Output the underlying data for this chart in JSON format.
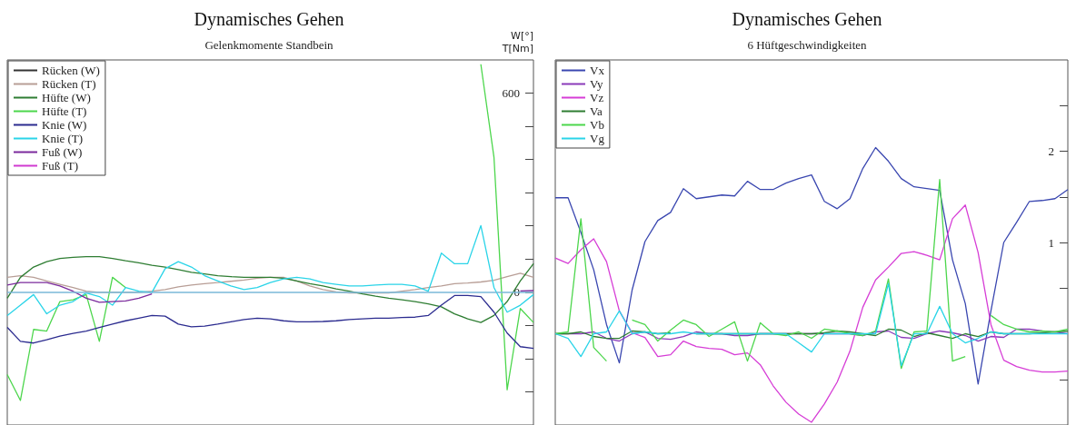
{
  "chart_data": [
    {
      "type": "line",
      "title": "Dynamisches Gehen",
      "subtitle": "Gelenkmomente Standbein",
      "ylabel": "W[°]\nT[Nm]",
      "legend": "top left",
      "grid": false,
      "marker": "none",
      "line_style": "solid",
      "tick_labels": "y",
      "categories": [
        null,
        null,
        null,
        null,
        null,
        null,
        null,
        null,
        null,
        null,
        null,
        null,
        null,
        null,
        null,
        null,
        null,
        null,
        null,
        null,
        null,
        null,
        null,
        null,
        null,
        null,
        null,
        null,
        null,
        null,
        null,
        null,
        null,
        null,
        null,
        null,
        null,
        null,
        null,
        null,
        null
      ],
      "ylim": [
        -400,
        700
      ],
      "yticks": [
        {
          "value": -300,
          "label": null
        },
        {
          "value": -200,
          "label": null
        },
        {
          "value": -100,
          "label": null
        },
        0,
        {
          "value": 100,
          "label": null
        },
        {
          "value": 200,
          "label": null
        },
        {
          "value": 300,
          "label": null
        },
        {
          "value": 400,
          "label": null
        },
        {
          "value": 500,
          "label": null
        },
        600
      ],
      "series": [
        {
          "name": "Rücken (W)",
          "color": "#333333",
          "values": [
            null,
            null,
            null,
            null,
            null,
            null,
            null,
            null,
            null,
            null,
            null,
            null,
            null,
            null,
            null,
            null,
            null,
            null,
            null,
            null,
            null,
            null,
            null,
            null,
            null,
            null,
            null,
            null,
            null,
            null,
            null,
            null,
            null,
            null,
            null,
            null,
            null,
            null,
            null,
            null,
            null
          ]
        },
        {
          "name": "Rücken (T)",
          "color": "#b89e96",
          "values": [
            45,
            50,
            45,
            34,
            24,
            14,
            3,
            0,
            0,
            0,
            0,
            3,
            8,
            16,
            22,
            26,
            29,
            33,
            37,
            42,
            45,
            45,
            34,
            19,
            8,
            1,
            -2,
            -2,
            -2,
            -2,
            3,
            8,
            14,
            19,
            26,
            28,
            31,
            36,
            47,
            57,
            45
          ]
        },
        {
          "name": "Hüfte (W)",
          "color": "#2e7d32",
          "values": [
            -18,
            45,
            76,
            92,
            102,
            105,
            107,
            107,
            102,
            95,
            89,
            81,
            76,
            68,
            60,
            55,
            50,
            47,
            45,
            45,
            45,
            42,
            34,
            26,
            19,
            10,
            3,
            -5,
            -12,
            -18,
            -23,
            -28,
            -35,
            -44,
            -65,
            -80,
            -91,
            -70,
            -28,
            34,
            86
          ]
        },
        {
          "name": "Hüfte (T)",
          "color": "#4cd64c",
          "values": [
            -248,
            -326,
            -112,
            -117,
            -28,
            -23,
            -7,
            -148,
            45,
            14,
            null,
            null,
            null,
            null,
            null,
            null,
            null,
            null,
            null,
            null,
            null,
            null,
            null,
            null,
            null,
            null,
            null,
            null,
            null,
            null,
            null,
            null,
            null,
            null,
            null,
            null,
            687,
            406,
            -294,
            -49,
            -91
          ]
        },
        {
          "name": "Knie (W)",
          "color": "#2b2b8f",
          "values": [
            -106,
            -148,
            -153,
            -143,
            -132,
            -124,
            -117,
            -106,
            -96,
            -86,
            -78,
            -70,
            -72,
            -96,
            -104,
            -102,
            -96,
            -89,
            -82,
            -78,
            -80,
            -86,
            -89,
            -89,
            -88,
            -86,
            -82,
            -80,
            -78,
            -78,
            -76,
            -75,
            -70,
            -39,
            -10,
            -10,
            -13,
            -60,
            -123,
            -164,
            -169
          ]
        },
        {
          "name": "Knie (T)",
          "color": "#2ad4e8",
          "values": [
            -70,
            -39,
            -7,
            -65,
            -39,
            -28,
            -2,
            -13,
            -39,
            14,
            3,
            0,
            71,
            92,
            76,
            50,
            34,
            19,
            8,
            14,
            29,
            40,
            45,
            40,
            29,
            24,
            19,
            19,
            22,
            24,
            24,
            19,
            3,
            118,
            86,
            86,
            201,
            14,
            -60,
            -39,
            -7
          ]
        },
        {
          "name": "Fuß (W)",
          "color": "#7b2a9c",
          "values": [
            22,
            29,
            29,
            29,
            19,
            3,
            -18,
            -30,
            -28,
            -26,
            -18,
            -5,
            null,
            null,
            null,
            null,
            null,
            null,
            null,
            null,
            null,
            null,
            null,
            null,
            null,
            null,
            null,
            null,
            null,
            null,
            null,
            null,
            null,
            null,
            null,
            null,
            null,
            null,
            null,
            4,
            5
          ]
        },
        {
          "name": "Fuß (T)",
          "color": "#d03ad0",
          "values": [
            null,
            null,
            null,
            null,
            null,
            null,
            null,
            null,
            null,
            null,
            null,
            null,
            null,
            null,
            null,
            null,
            null,
            null,
            null,
            null,
            null,
            null,
            null,
            null,
            null,
            null,
            null,
            null,
            null,
            null,
            null,
            null,
            null,
            null,
            null,
            null,
            null,
            null,
            null,
            null,
            null
          ]
        }
      ],
      "ref_lines": [
        {
          "axis": "y",
          "value": 0,
          "color": "#7ab8d8"
        }
      ]
    },
    {
      "type": "line",
      "title": "Dynamisches Gehen",
      "subtitle": "6 Hüftgeschwindigkeiten",
      "legend": "top left",
      "grid": false,
      "marker": "none",
      "line_style": "solid",
      "tick_labels": "y",
      "categories": [
        null,
        null,
        null,
        null,
        null,
        null,
        null,
        null,
        null,
        null,
        null,
        null,
        null,
        null,
        null,
        null,
        null,
        null,
        null,
        null,
        null,
        null,
        null,
        null,
        null,
        null,
        null,
        null,
        null,
        null,
        null,
        null,
        null,
        null,
        null,
        null,
        null,
        null,
        null,
        null,
        null
      ],
      "ylim": [
        -1,
        3
      ],
      "yticks": [
        {
          "value": -0.5,
          "label": null
        },
        {
          "value": 0.5,
          "label": null
        },
        1,
        {
          "value": 1.5,
          "label": null
        },
        2,
        {
          "value": 2.5,
          "label": null
        }
      ],
      "series": [
        {
          "name": "Vx",
          "color": "#3a47b0",
          "values": [
            1.49,
            1.49,
            1.11,
            0.7,
            0.1,
            -0.32,
            0.48,
            1.01,
            1.24,
            1.33,
            1.59,
            1.48,
            1.5,
            1.52,
            1.51,
            1.67,
            1.58,
            1.58,
            1.65,
            1.7,
            1.74,
            1.45,
            1.37,
            1.48,
            1.81,
            2.04,
            1.89,
            1.7,
            1.61,
            1.59,
            1.57,
            0.81,
            0.33,
            -0.55,
            0.25,
            1.0,
            1.22,
            1.45,
            1.46,
            1.48,
            1.58
          ]
        },
        {
          "name": "Vy",
          "color": "#8a3ab9",
          "values": [
            0,
            0,
            0,
            0.02,
            -0.05,
            -0.08,
            0,
            0.02,
            -0.05,
            -0.06,
            -0.03,
            0.02,
            0,
            0,
            -0.02,
            -0.02,
            0,
            0,
            0,
            0,
            0,
            0,
            0,
            0,
            -0.02,
            0.02,
            0.03,
            -0.04,
            -0.05,
            0,
            0.03,
            0.01,
            -0.02,
            -0.08,
            -0.03,
            -0.04,
            0.05,
            0.05,
            0.03,
            0.02,
            0
          ]
        },
        {
          "name": "Vz",
          "color": "#d63dd6",
          "values": [
            0.83,
            0.77,
            0.92,
            1.04,
            0.79,
            0.25,
            0.01,
            -0.04,
            -0.25,
            -0.23,
            -0.08,
            -0.14,
            -0.16,
            -0.17,
            -0.23,
            -0.21,
            -0.34,
            -0.57,
            -0.75,
            -0.88,
            -0.97,
            -0.77,
            -0.53,
            -0.19,
            0.29,
            0.59,
            0.73,
            0.88,
            0.9,
            0.86,
            0.81,
            1.26,
            1.41,
            0.89,
            0.1,
            -0.29,
            -0.36,
            -0.4,
            -0.42,
            -0.42,
            -0.41
          ]
        },
        {
          "name": "Va",
          "color": "#2e7d32",
          "values": [
            0,
            0,
            0.02,
            -0.03,
            -0.05,
            -0.05,
            0.03,
            0.02,
            0,
            0.01,
            null,
            0,
            0,
            0,
            0,
            0,
            0,
            0,
            0,
            0,
            0,
            0.01,
            0.03,
            0.02,
            0,
            -0.02,
            0.05,
            0.04,
            -0.03,
            0.01,
            -0.02,
            -0.05,
            0,
            -0.03,
            0.02,
            0,
            0,
            0,
            0.01,
            0.02,
            0.03
          ]
        },
        {
          "name": "Vb",
          "color": "#4cd64c",
          "values": [
            0,
            0.02,
            1.26,
            -0.15,
            -0.3,
            null,
            0.15,
            0.1,
            -0.08,
            0.04,
            0.15,
            0.1,
            -0.03,
            0.05,
            0.13,
            -0.3,
            0.12,
            0,
            -0.02,
            0.02,
            -0.05,
            0.05,
            0.03,
            0,
            -0.02,
            0.03,
            0.6,
            -0.38,
            0.02,
            0.03,
            1.69,
            -0.3,
            -0.25,
            null,
            0.2,
            0.1,
            0.05,
            0.02,
            0.03,
            0.02,
            0.05
          ]
        },
        {
          "name": "Vg",
          "color": "#2ad4e8",
          "values": [
            0,
            -0.05,
            -0.25,
            0,
            0.02,
            0.25,
            0,
            0.02,
            0,
            0,
            0.02,
            0,
            0,
            0,
            0,
            0,
            0,
            0,
            0,
            -0.1,
            -0.2,
            0,
            0,
            0,
            0,
            0,
            0.55,
            -0.35,
            0,
            0,
            0.3,
            0,
            -0.1,
            -0.05,
            0.02,
            0,
            0,
            0,
            0,
            0,
            0
          ]
        }
      ]
    }
  ]
}
